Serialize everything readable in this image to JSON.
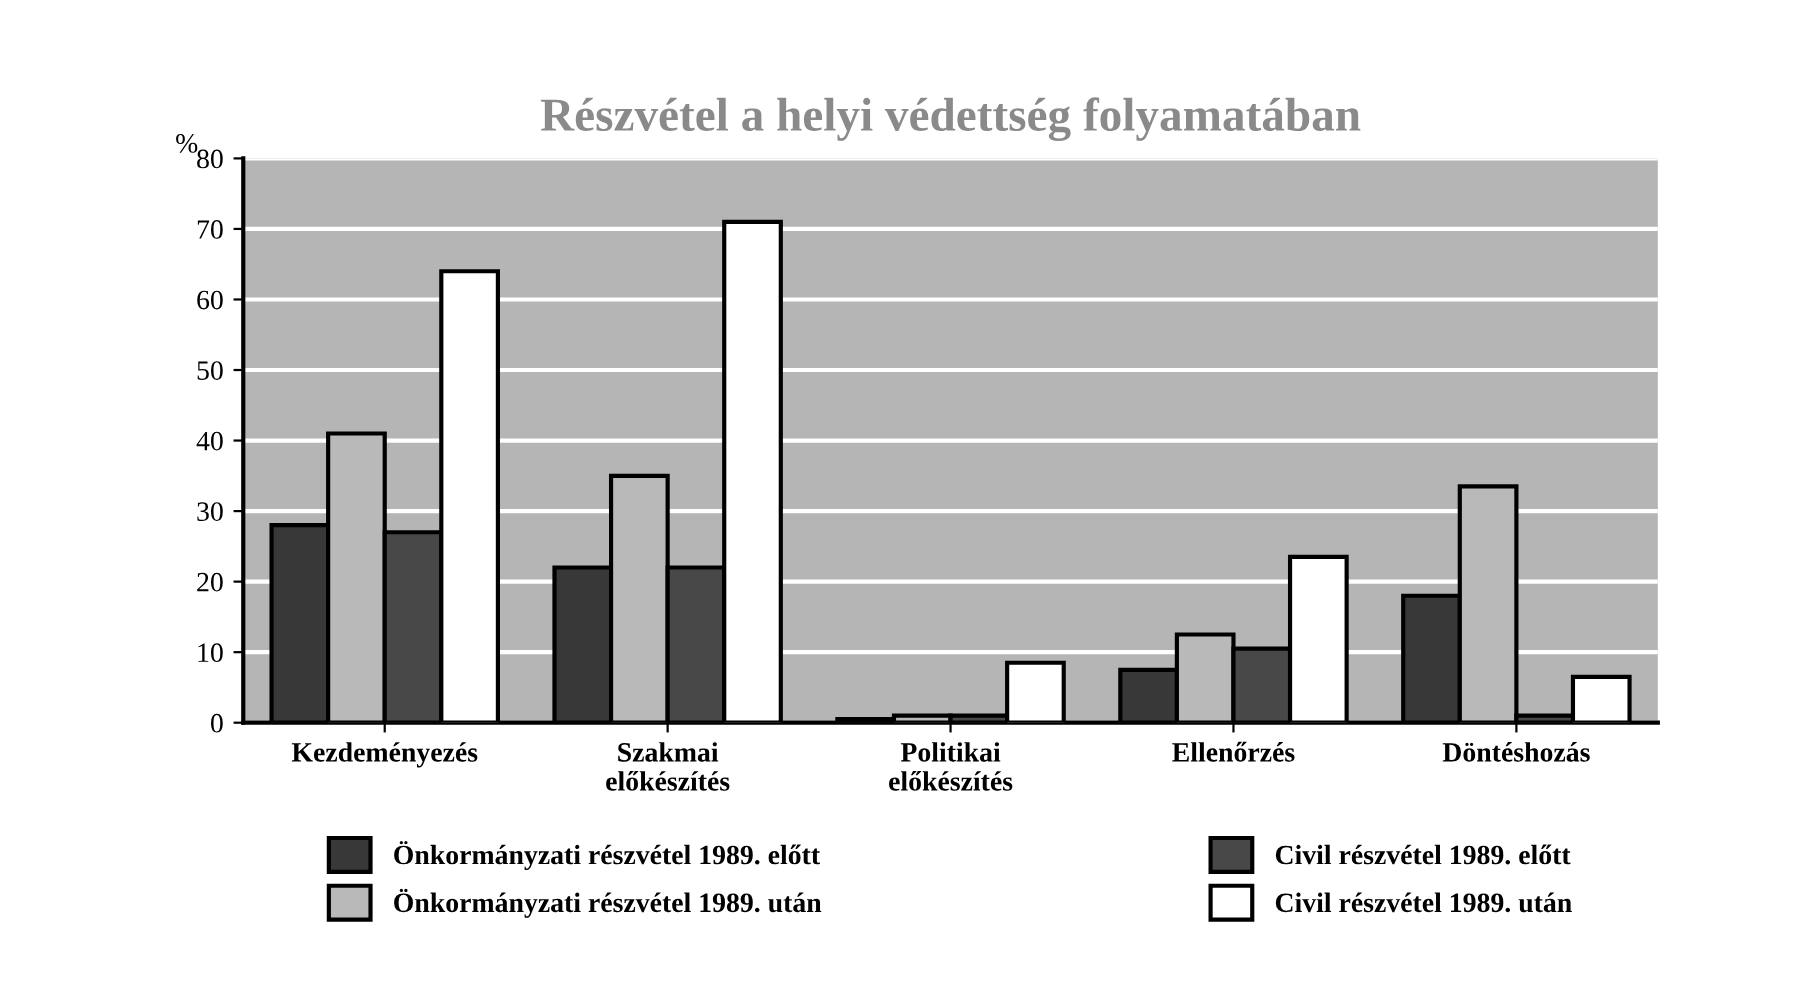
{
  "chart_data": {
    "type": "bar",
    "title": "Részvétel a helyi védettség folyamatában",
    "ylabel": "%",
    "categories": [
      "Kezdeményezés",
      "Szakmai\nelőkészítés",
      "Politikai\nelőkészítés",
      "Ellenőrzés",
      "Döntéshozás"
    ],
    "series": [
      {
        "name": "Önkormányzati részvétel 1989. előtt",
        "color": "#383838",
        "values": [
          28,
          22,
          0.5,
          7.5,
          18
        ]
      },
      {
        "name": "Önkormányzati részvétel 1989. után",
        "color": "#b9b9b9",
        "values": [
          41,
          35,
          1,
          12.5,
          33.5
        ]
      },
      {
        "name": "Civil részvétel 1989. előtt",
        "color": "#484848",
        "values": [
          27,
          22,
          1,
          10.5,
          1
        ]
      },
      {
        "name": "Civil részvétel 1989. után",
        "color": "#ffffff",
        "values": [
          64,
          71,
          8.5,
          23.5,
          6.5
        ]
      }
    ],
    "ylim": [
      0,
      80
    ],
    "yticks": [
      0,
      10,
      20,
      30,
      40,
      50,
      60,
      70,
      80
    ],
    "grid": "y",
    "legend": "bottom"
  }
}
